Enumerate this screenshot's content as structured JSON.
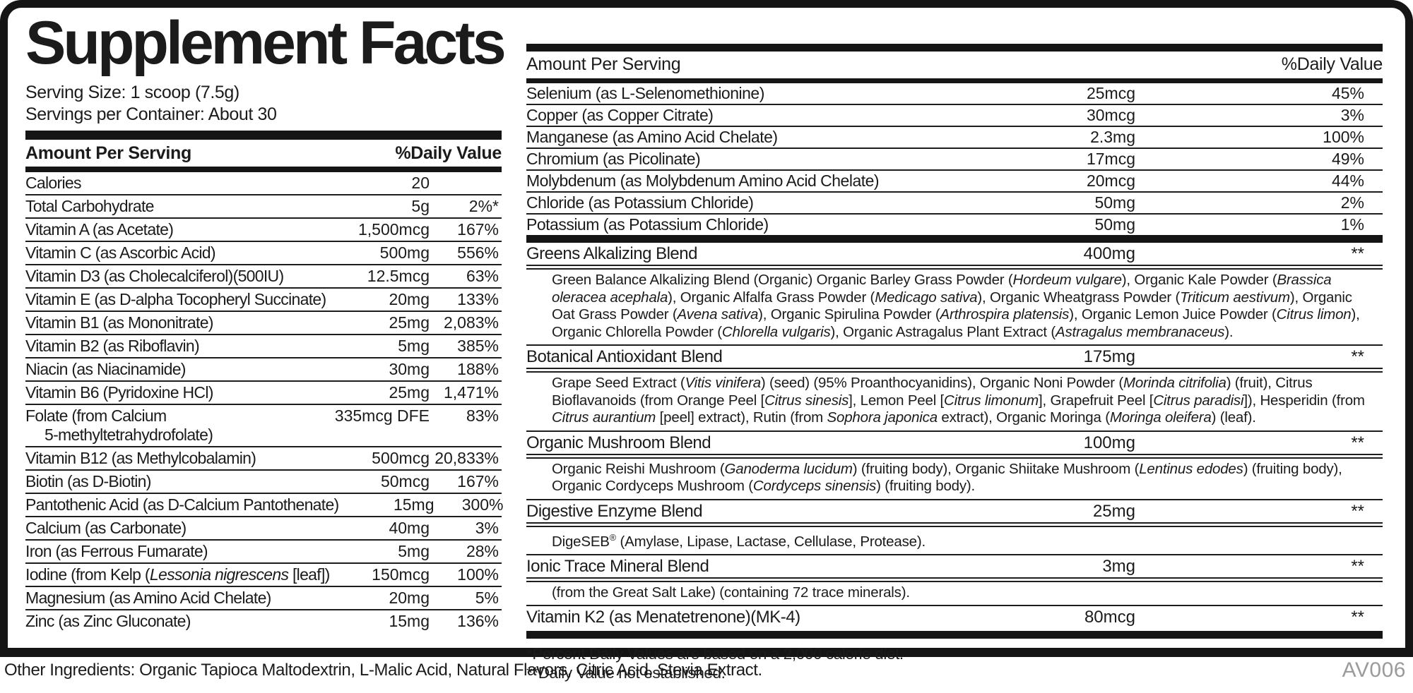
{
  "label": {
    "title": "Supplement Facts",
    "serving_size": "Serving Size: 1 scoop (7.5g)",
    "servings_per_container": "Servings per Container: About 30",
    "other_ingredients": "Other Ingredients: Organic Tapioca Maltodextrin, L-Malic Acid, Natural Flavors, Citric Acid, Stevia Extract.",
    "code": "AV006"
  },
  "colors": {
    "ink": "#151515",
    "text": "#1b1b1b",
    "code_gray": "#9b9b9b"
  },
  "left_table": {
    "header": {
      "amount": "Amount Per Serving",
      "dv": "%Daily Value"
    },
    "rows": [
      {
        "label": "Calories",
        "amount": "20",
        "dv": ""
      },
      {
        "label": "Total Carbohydrate",
        "amount": "5g",
        "dv": "2%*"
      },
      {
        "label": "Vitamin A (as Acetate)",
        "amount": "1,500mcg",
        "dv": "167%"
      },
      {
        "label": "Vitamin C (as Ascorbic Acid)",
        "amount": "500mg",
        "dv": "556%"
      },
      {
        "label": "Vitamin D3 (as Cholecalciferol)(500IU)",
        "amount": "12.5mcg",
        "dv": "63%"
      },
      {
        "label": "Vitamin E (as D-alpha Tocopheryl Succinate)",
        "amount": "20mg",
        "dv": "133%"
      },
      {
        "label": "Vitamin B1 (as Mononitrate)",
        "amount": "25mg",
        "dv": "2,083%"
      },
      {
        "label": "Vitamin B2 (as Riboflavin)",
        "amount": "5mg",
        "dv": "385%"
      },
      {
        "label": "Niacin (as Niacinamide)",
        "amount": "30mg",
        "dv": "188%"
      },
      {
        "label": "Vitamin B6 (Pyridoxine HCl)",
        "amount": "25mg",
        "dv": "1,471%"
      },
      {
        "label_line1": "Folate (from Calcium",
        "label_line2": "5-methyltetrahydrofolate)",
        "amount": "335mcg DFE",
        "dv": "83%"
      },
      {
        "label": "Vitamin B12 (as Methylcobalamin)",
        "amount": "500mcg",
        "dv": "20,833%"
      },
      {
        "label": "Biotin (as D-Biotin)",
        "amount": "50mcg",
        "dv": "167%"
      },
      {
        "label": "Pantothenic Acid (as D-Calcium Pantothenate)",
        "amount": "15mg",
        "dv": "300%"
      },
      {
        "label": "Calcium (as Carbonate)",
        "amount": "40mg",
        "dv": "3%"
      },
      {
        "label": "Iron (as Ferrous Fumarate)",
        "amount": "5mg",
        "dv": "28%"
      },
      {
        "label_segments": [
          {
            "t": "Iodine (from Kelp ("
          },
          {
            "t": "Lessonia nigrescens",
            "i": true
          },
          {
            "t": " [leaf])"
          }
        ],
        "amount": "150mcg",
        "dv": "100%"
      },
      {
        "label": "Magnesium (as Amino Acid Chelate)",
        "amount": "20mg",
        "dv": "5%"
      },
      {
        "label": "Zinc (as Zinc Gluconate)",
        "amount": "15mg",
        "dv": "136%"
      }
    ]
  },
  "right_table": {
    "header": {
      "amount": "Amount Per Serving",
      "dv": "%Daily Value"
    },
    "rows": [
      {
        "label": "Selenium (as L-Selenomethionine)",
        "amount": "25mcg",
        "dv": "45%"
      },
      {
        "label": "Copper (as Copper Citrate)",
        "amount": "30mcg",
        "dv": "3%"
      },
      {
        "label": "Manganese (as Amino Acid Chelate)",
        "amount": "2.3mg",
        "dv": "100%"
      },
      {
        "label": "Chromium (as Picolinate)",
        "amount": "17mcg",
        "dv": "49%"
      },
      {
        "label": "Molybdenum (as Molybdenum Amino Acid Chelate)",
        "amount": "20mcg",
        "dv": "44%"
      },
      {
        "label": "Chloride (as Potassium Chloride)",
        "amount": "50mg",
        "dv": "2%"
      },
      {
        "label": "Potassium (as Potassium Chloride)",
        "amount": "50mg",
        "dv": "1%"
      }
    ],
    "blends": [
      {
        "name": "Greens Alkalizing Blend",
        "amount": "400mg",
        "dv": "**",
        "desc": [
          {
            "t": "Green Balance Alkalizing Blend (Organic) Organic Barley Grass Powder ("
          },
          {
            "t": "Hordeum vulgare",
            "i": true
          },
          {
            "t": "), Organic Kale Powder ("
          },
          {
            "t": "Brassica oleracea acephala",
            "i": true
          },
          {
            "t": "), Organic Alfalfa Grass Powder ("
          },
          {
            "t": "Medicago sativa",
            "i": true
          },
          {
            "t": "), Organic Wheatgrass Powder ("
          },
          {
            "t": "Triticum aestivum",
            "i": true
          },
          {
            "t": "), Organic Oat Grass Powder ("
          },
          {
            "t": "Avena sativa",
            "i": true
          },
          {
            "t": "), Organic Spirulina Powder ("
          },
          {
            "t": "Arthrospira platensis",
            "i": true
          },
          {
            "t": "), Organic Lemon Juice Powder ("
          },
          {
            "t": "Citrus limon",
            "i": true
          },
          {
            "t": "), Organic Chlorella Powder ("
          },
          {
            "t": "Chlorella vulgaris",
            "i": true
          },
          {
            "t": "), Organic Astragalus Plant Extract ("
          },
          {
            "t": "Astragalus membranaceus",
            "i": true
          },
          {
            "t": ")."
          }
        ]
      },
      {
        "name": "Botanical Antioxidant Blend",
        "amount": "175mg",
        "dv": "**",
        "desc": [
          {
            "t": "Grape Seed Extract ("
          },
          {
            "t": "Vitis vinifera",
            "i": true
          },
          {
            "t": ") (seed) (95% Proanthocyanidins), Organic Noni Powder ("
          },
          {
            "t": "Morinda citrifolia",
            "i": true
          },
          {
            "t": ") (fruit), Citrus Bioflavanoids (from Orange Peel ["
          },
          {
            "t": "Citrus sinesis",
            "i": true
          },
          {
            "t": "], Lemon Peel ["
          },
          {
            "t": "Citrus limonum",
            "i": true
          },
          {
            "t": "], Grapefruit Peel ["
          },
          {
            "t": "Citrus paradisi",
            "i": true
          },
          {
            "t": "]), Hesperidin (from "
          },
          {
            "t": "Citrus aurantium",
            "i": true
          },
          {
            "t": " [peel] extract), Rutin (from "
          },
          {
            "t": "Sophora japonica",
            "i": true
          },
          {
            "t": " extract), Organic Moringa ("
          },
          {
            "t": "Moringa oleifera",
            "i": true
          },
          {
            "t": ") (leaf)."
          }
        ]
      },
      {
        "name": "Organic Mushroom Blend",
        "amount": "100mg",
        "dv": "**",
        "desc": [
          {
            "t": "Organic Reishi Mushroom ("
          },
          {
            "t": "Ganoderma lucidum",
            "i": true
          },
          {
            "t": ") (fruiting body), Organic Shiitake Mushroom ("
          },
          {
            "t": "Lentinus edodes",
            "i": true
          },
          {
            "t": ") (fruiting body), Organic Cordyceps Mushroom ("
          },
          {
            "t": "Cordyceps sinensis",
            "i": true
          },
          {
            "t": ") (fruiting body)."
          }
        ]
      },
      {
        "name": "Digestive Enzyme Blend",
        "amount": "25mg",
        "dv": "**",
        "desc": [
          {
            "t": "DigeSEB"
          },
          {
            "t": "®",
            "s": true
          },
          {
            "t": " (Amylase, Lipase, Lactase, Cellulase, Protease)."
          }
        ]
      },
      {
        "name": "Ionic Trace Mineral Blend",
        "amount": "3mg",
        "dv": "**",
        "desc": [
          {
            "t": "(from the Great Salt Lake) (containing 72 trace minerals)."
          }
        ]
      },
      {
        "name": "Vitamin K2 (as Menatetrenone)(MK-4)",
        "amount": "80mcg",
        "dv": "**"
      }
    ],
    "footnotes": [
      "*Percent Daily Values are based on a 2,000 calorie diet.",
      "**Daily Value not established."
    ]
  }
}
